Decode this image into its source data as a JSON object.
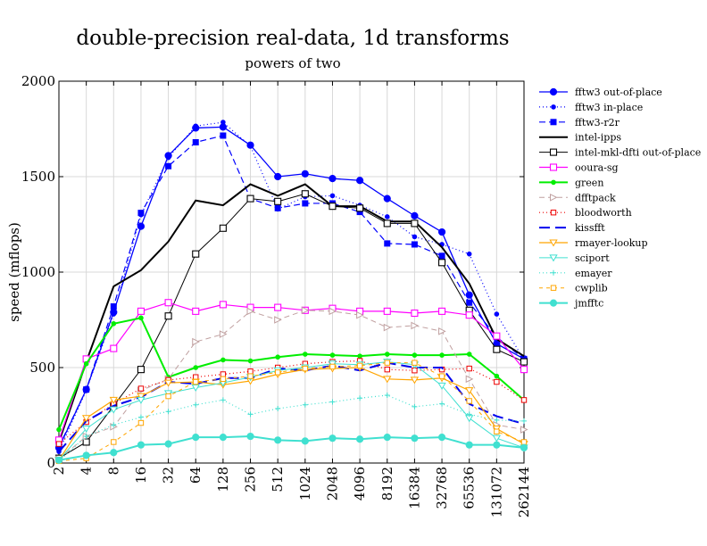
{
  "chart_data": {
    "type": "line",
    "title": "double-precision real-data, 1d transforms",
    "subtitle": "powers of two",
    "xlabel": "",
    "ylabel": "speed (mflops)",
    "ylim": [
      0,
      2000
    ],
    "yticks": [
      "0",
      "500",
      "1000",
      "1500",
      "2000"
    ],
    "x": [
      "2",
      "4",
      "8",
      "16",
      "32",
      "64",
      "128",
      "256",
      "512",
      "1024",
      "2048",
      "4096",
      "8192",
      "16384",
      "32768",
      "65536",
      "131072",
      "262144"
    ],
    "grid": true,
    "legend_position": "right",
    "series": [
      {
        "name": "fftw3 out-of-place",
        "color": "#0000ff",
        "dash": "",
        "marker": "circle-filled",
        "width": 1.3,
        "values": [
          80,
          385,
          790,
          1240,
          1610,
          1755,
          1760,
          1665,
          1500,
          1515,
          1490,
          1480,
          1385,
          1295,
          1210,
          880,
          625,
          545
        ]
      },
      {
        "name": "fftw3 in-place",
        "color": "#0000ff",
        "dash": "1 3",
        "marker": "dot",
        "width": 1.2,
        "values": [
          60,
          380,
          780,
          1300,
          1600,
          1765,
          1785,
          1660,
          1330,
          1395,
          1400,
          1350,
          1290,
          1185,
          1145,
          1095,
          780,
          540
        ]
      },
      {
        "name": "fftw3-r2r",
        "color": "#0000ff",
        "dash": "7 4",
        "marker": "square-filled",
        "width": 1.2,
        "values": [
          85,
          385,
          820,
          1310,
          1555,
          1680,
          1715,
          1385,
          1335,
          1360,
          1360,
          1315,
          1150,
          1145,
          1085,
          840,
          660,
          545
        ]
      },
      {
        "name": "intel-ipps",
        "color": "#000000",
        "dash": "",
        "marker": "none",
        "width": 2,
        "values": [
          110,
          530,
          925,
          1010,
          1160,
          1375,
          1350,
          1460,
          1400,
          1460,
          1345,
          1345,
          1265,
          1265,
          1130,
          940,
          650,
          560
        ]
      },
      {
        "name": "intel-mkl-dfti out-of-place",
        "color": "#000000",
        "dash": "",
        "marker": "square-open",
        "width": 1,
        "values": [
          25,
          110,
          300,
          490,
          770,
          1095,
          1230,
          1385,
          1370,
          1410,
          1345,
          1335,
          1255,
          1255,
          1050,
          800,
          595,
          530
        ]
      },
      {
        "name": "ooura-sg",
        "color": "#ff00ff",
        "dash": "",
        "marker": "square-open",
        "width": 1.2,
        "values": [
          120,
          545,
          600,
          795,
          840,
          795,
          830,
          815,
          815,
          800,
          810,
          795,
          795,
          785,
          795,
          775,
          665,
          490
        ]
      },
      {
        "name": "green",
        "color": "#00ee00",
        "dash": "",
        "marker": "dot",
        "width": 2,
        "values": [
          175,
          520,
          730,
          760,
          450,
          500,
          540,
          535,
          555,
          570,
          565,
          560,
          570,
          565,
          565,
          570,
          455,
          330
        ]
      },
      {
        "name": "dfftpack",
        "color": "#c0a0a0",
        "dash": "6 4",
        "marker": "triangle-right-open",
        "width": 1,
        "values": [
          20,
          140,
          190,
          380,
          440,
          635,
          675,
          795,
          750,
          800,
          795,
          775,
          710,
          720,
          690,
          440,
          200,
          175
        ]
      },
      {
        "name": "bloodworth",
        "color": "#ee0000",
        "dash": "1 3",
        "marker": "square-open-small",
        "width": 1.2,
        "values": [
          100,
          215,
          310,
          390,
          435,
          450,
          465,
          480,
          500,
          520,
          530,
          535,
          490,
          485,
          490,
          495,
          425,
          330
        ]
      },
      {
        "name": "kissfft",
        "color": "#0000ee",
        "dash": "12 6",
        "marker": "none",
        "width": 2,
        "values": [
          60,
          220,
          300,
          345,
          425,
          415,
          445,
          445,
          495,
          485,
          510,
          485,
          525,
          500,
          500,
          310,
          245,
          205
        ]
      },
      {
        "name": "rmayer-lookup",
        "color": "#ffa500",
        "dash": "",
        "marker": "triangle-down-open",
        "width": 1.2,
        "values": [
          15,
          235,
          330,
          350,
          420,
          425,
          410,
          430,
          465,
          490,
          495,
          500,
          440,
          435,
          445,
          380,
          180,
          100
        ]
      },
      {
        "name": "sciport",
        "color": "#40e0d0",
        "dash": "",
        "marker": "triangle-down-open",
        "width": 1,
        "values": [
          15,
          180,
          280,
          330,
          365,
          395,
          420,
          450,
          485,
          500,
          520,
          515,
          530,
          515,
          405,
          235,
          130,
          80
        ]
      },
      {
        "name": "emayer",
        "color": "#40e0d0",
        "dash": "1 3",
        "marker": "plus",
        "width": 1.2,
        "values": [
          10,
          140,
          200,
          240,
          270,
          305,
          330,
          255,
          285,
          305,
          320,
          340,
          355,
          295,
          310,
          255,
          225,
          220
        ]
      },
      {
        "name": "cwplib",
        "color": "#ffa500",
        "dash": "4 4",
        "marker": "square-open-small",
        "width": 1,
        "values": [
          10,
          25,
          110,
          210,
          350,
          425,
          440,
          455,
          475,
          495,
          505,
          510,
          525,
          525,
          455,
          325,
          165,
          110
        ]
      },
      {
        "name": "jmfftc",
        "color": "#40e0d0",
        "dash": "",
        "marker": "circle-filled",
        "width": 2,
        "values": [
          15,
          40,
          55,
          95,
          100,
          135,
          135,
          140,
          120,
          115,
          130,
          125,
          135,
          130,
          135,
          95,
          95,
          80
        ]
      }
    ]
  }
}
